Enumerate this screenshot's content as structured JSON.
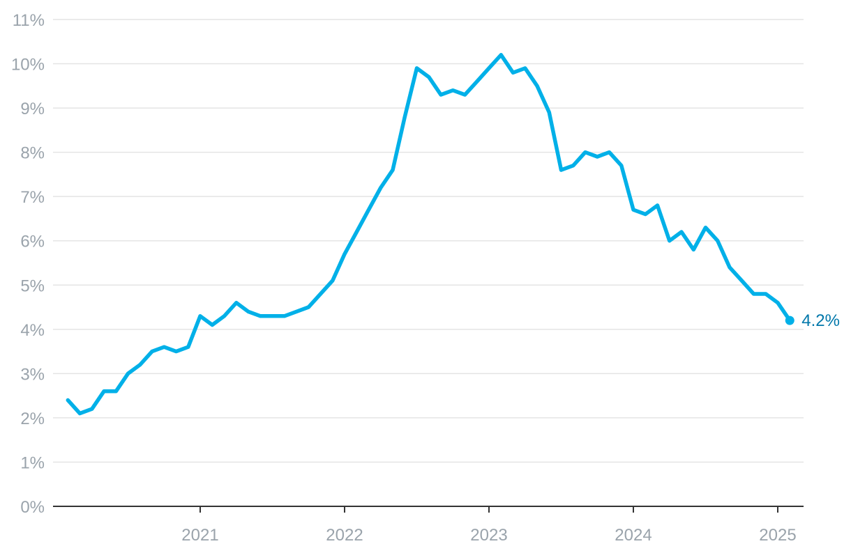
{
  "chart_data": {
    "type": "line",
    "title": "",
    "xlabel": "",
    "ylabel": "",
    "ylim": [
      0,
      11
    ],
    "y_tick_labels": [
      "0%",
      "1%",
      "2%",
      "3%",
      "4%",
      "5%",
      "6%",
      "7%",
      "8%",
      "9%",
      "10%",
      "11%"
    ],
    "x_tick_labels": [
      "2021",
      "2022",
      "2023",
      "2024",
      "2025"
    ],
    "grid": "horizontal",
    "line_color": "#00b0e8",
    "axis_color": "#333333",
    "grid_color": "#e4e4e4",
    "end_label": "4.2%",
    "end_label_color": "#0077aa",
    "series": [
      {
        "x": [
          "2020-02",
          "2020-03",
          "2020-04",
          "2020-05",
          "2020-06",
          "2020-07",
          "2020-08",
          "2020-09",
          "2020-10",
          "2020-11",
          "2020-12",
          "2021-01",
          "2021-02",
          "2021-03",
          "2021-04",
          "2021-05",
          "2021-06",
          "2021-07",
          "2021-08",
          "2021-09",
          "2021-10",
          "2021-11",
          "2021-12",
          "2022-01",
          "2022-02",
          "2022-03",
          "2022-04",
          "2022-05",
          "2022-06",
          "2022-07",
          "2022-08",
          "2022-09",
          "2022-10",
          "2022-11",
          "2022-12",
          "2023-01",
          "2023-02",
          "2023-03",
          "2023-04",
          "2023-05",
          "2023-06",
          "2023-07",
          "2023-08",
          "2023-09",
          "2023-10",
          "2023-11",
          "2023-12",
          "2024-01",
          "2024-02",
          "2024-03",
          "2024-04",
          "2024-05",
          "2024-06",
          "2024-07",
          "2024-08",
          "2024-09",
          "2024-10",
          "2024-11",
          "2024-12",
          "2025-01",
          "2025-02"
        ],
        "values": [
          2.4,
          2.1,
          2.2,
          2.6,
          2.6,
          3.0,
          3.2,
          3.5,
          3.6,
          3.5,
          3.6,
          4.3,
          4.1,
          4.3,
          4.6,
          4.4,
          4.3,
          4.3,
          4.3,
          4.4,
          4.5,
          4.8,
          5.1,
          5.7,
          6.2,
          6.7,
          7.2,
          7.6,
          8.8,
          9.9,
          9.7,
          9.3,
          9.4,
          9.3,
          9.6,
          9.9,
          10.2,
          9.8,
          9.9,
          9.5,
          8.9,
          7.6,
          7.7,
          8.0,
          7.9,
          8.0,
          7.7,
          6.7,
          6.6,
          6.8,
          6.0,
          6.2,
          5.8,
          6.3,
          6.0,
          5.4,
          5.1,
          4.8,
          4.8,
          4.6,
          4.2
        ]
      }
    ]
  }
}
